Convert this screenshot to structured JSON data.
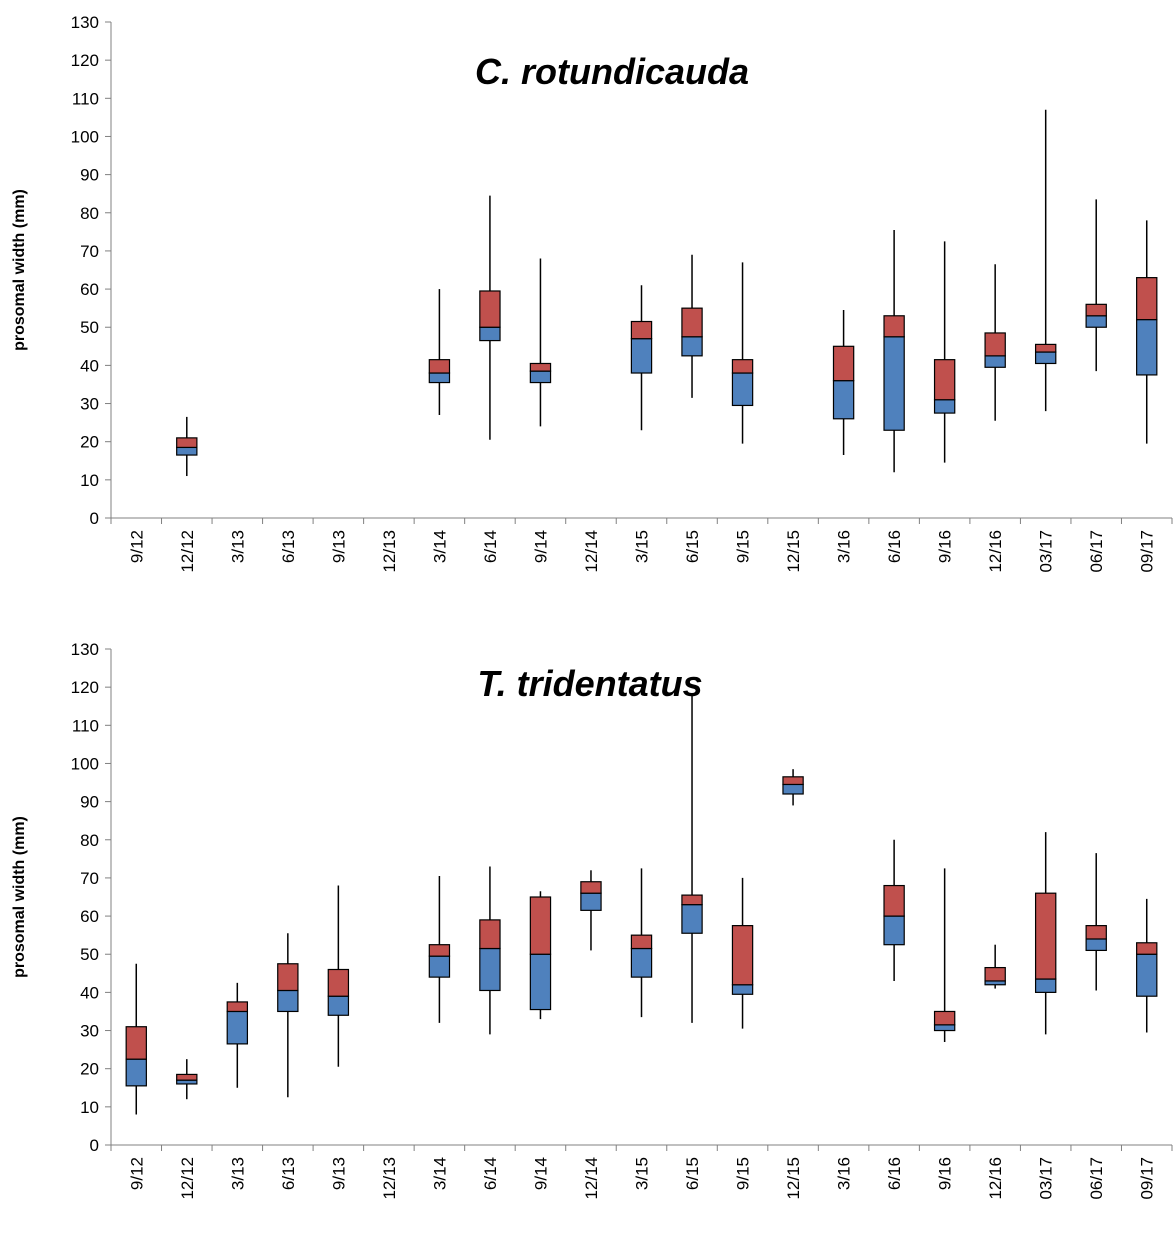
{
  "colors": {
    "upper_box": "#C0504D",
    "lower_box": "#4F81BD",
    "outline": "#000000",
    "axis": "#808080"
  },
  "chart_data": [
    {
      "type": "boxplot",
      "title": "C. rotundicauda",
      "ylabel": "prosomal width (mm)",
      "xlabel": "",
      "ylim": [
        0,
        130
      ],
      "ytick_step": 10,
      "grid": false,
      "legend": "none",
      "categories": [
        "9/12",
        "12/12",
        "3/13",
        "6/13",
        "9/13",
        "12/13",
        "3/14",
        "6/14",
        "9/14",
        "12/14",
        "3/15",
        "6/15",
        "9/15",
        "12/15",
        "3/16",
        "6/16",
        "9/16",
        "12/16",
        "03/17",
        "06/17",
        "09/17"
      ],
      "boxes": [
        null,
        {
          "min": 11,
          "q1": 16.5,
          "median": 18.5,
          "q3": 21,
          "max": 26.5
        },
        null,
        null,
        null,
        null,
        {
          "min": 27,
          "q1": 35.5,
          "median": 38,
          "q3": 41.5,
          "max": 60
        },
        {
          "min": 20.5,
          "q1": 46.5,
          "median": 50,
          "q3": 59.5,
          "max": 84.5
        },
        {
          "min": 24,
          "q1": 35.5,
          "median": 38.5,
          "q3": 40.5,
          "max": 68
        },
        null,
        {
          "min": 23,
          "q1": 38,
          "median": 47,
          "q3": 51.5,
          "max": 61
        },
        {
          "min": 31.5,
          "q1": 42.5,
          "median": 47.5,
          "q3": 55,
          "max": 69
        },
        {
          "min": 19.5,
          "q1": 29.5,
          "median": 38,
          "q3": 41.5,
          "max": 67
        },
        null,
        {
          "min": 16.5,
          "q1": 26,
          "median": 36,
          "q3": 45,
          "max": 54.5
        },
        {
          "min": 12,
          "q1": 23,
          "median": 47.5,
          "q3": 53,
          "max": 75.5
        },
        {
          "min": 14.5,
          "q1": 27.5,
          "median": 31,
          "q3": 41.5,
          "max": 72.5
        },
        {
          "min": 25.5,
          "q1": 39.5,
          "median": 42.5,
          "q3": 48.5,
          "max": 66.5
        },
        {
          "min": 28,
          "q1": 40.5,
          "median": 43.5,
          "q3": 45.5,
          "max": 107
        },
        {
          "min": 38.5,
          "q1": 50,
          "median": 53,
          "q3": 56,
          "max": 83.5
        },
        {
          "min": 19.5,
          "q1": 37.5,
          "median": 52,
          "q3": 63,
          "max": 78
        }
      ]
    },
    {
      "type": "boxplot",
      "title": "T. tridentatus",
      "ylabel": "prosomal width (mm)",
      "xlabel": "",
      "ylim": [
        0,
        130
      ],
      "ytick_step": 10,
      "grid": false,
      "legend": "none",
      "categories": [
        "9/12",
        "12/12",
        "3/13",
        "6/13",
        "9/13",
        "12/13",
        "3/14",
        "6/14",
        "9/14",
        "12/14",
        "3/15",
        "6/15",
        "9/15",
        "12/15",
        "3/16",
        "6/16",
        "9/16",
        "12/16",
        "03/17",
        "06/17",
        "09/17"
      ],
      "boxes": [
        {
          "min": 8,
          "q1": 15.5,
          "median": 22.5,
          "q3": 31,
          "max": 47.5
        },
        {
          "min": 12,
          "q1": 16,
          "median": 17,
          "q3": 18.5,
          "max": 22.5
        },
        {
          "min": 15,
          "q1": 26.5,
          "median": 35,
          "q3": 37.5,
          "max": 42.5
        },
        {
          "min": 12.5,
          "q1": 35,
          "median": 40.5,
          "q3": 47.5,
          "max": 55.5
        },
        {
          "min": 20.5,
          "q1": 34,
          "median": 39,
          "q3": 46,
          "max": 68
        },
        null,
        {
          "min": 32,
          "q1": 44,
          "median": 49.5,
          "q3": 52.5,
          "max": 70.5
        },
        {
          "min": 29,
          "q1": 40.5,
          "median": 51.5,
          "q3": 59,
          "max": 73
        },
        {
          "min": 33,
          "q1": 35.5,
          "median": 50,
          "q3": 65,
          "max": 66.5
        },
        {
          "min": 51,
          "q1": 61.5,
          "median": 66,
          "q3": 69,
          "max": 72
        },
        {
          "min": 33.5,
          "q1": 44,
          "median": 51.5,
          "q3": 55,
          "max": 72.5
        },
        {
          "min": 32,
          "q1": 55.5,
          "median": 63,
          "q3": 65.5,
          "max": 118
        },
        {
          "min": 30.5,
          "q1": 39.5,
          "median": 42,
          "q3": 57.5,
          "max": 70
        },
        {
          "min": 89,
          "q1": 92,
          "median": 94.5,
          "q3": 96.5,
          "max": 98.5
        },
        null,
        {
          "min": 43,
          "q1": 52.5,
          "median": 60,
          "q3": 68,
          "max": 80
        },
        {
          "min": 27,
          "q1": 30,
          "median": 31.5,
          "q3": 35,
          "max": 72.5
        },
        {
          "min": 41,
          "q1": 42,
          "median": 43,
          "q3": 46.5,
          "max": 52.5
        },
        {
          "min": 29,
          "q1": 40,
          "median": 43.5,
          "q3": 66,
          "max": 82
        },
        {
          "min": 40.5,
          "q1": 51,
          "median": 54,
          "q3": 57.5,
          "max": 76.5
        },
        {
          "min": 29.5,
          "q1": 39,
          "median": 50,
          "q3": 53,
          "max": 64.5
        }
      ]
    }
  ]
}
